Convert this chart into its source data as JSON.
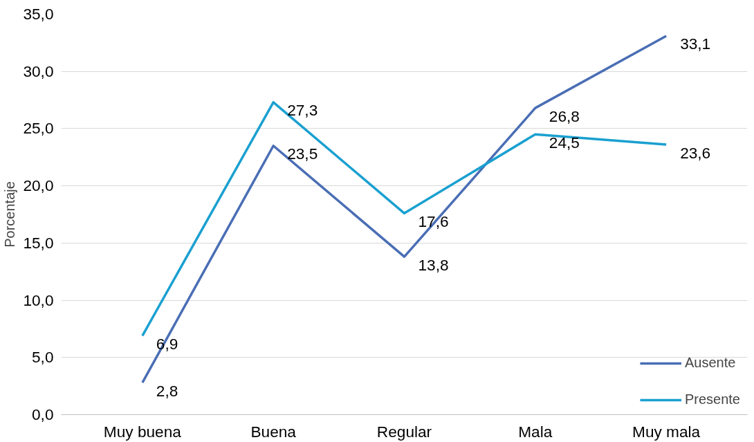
{
  "chart_data": {
    "type": "line",
    "ylabel": "Porcentaje",
    "categories": [
      "Muy buena",
      "Buena",
      "Regular",
      "Mala",
      "Muy mala"
    ],
    "series": [
      {
        "name": "Ausente",
        "color": "#4a6eb5",
        "values": [
          2.8,
          23.5,
          13.8,
          26.8,
          33.1
        ],
        "value_labels": [
          "2,8",
          "23,5",
          "13,8",
          "26,8",
          "33,1"
        ]
      },
      {
        "name": "Presente",
        "color": "#1aa0d0",
        "values": [
          6.9,
          27.3,
          17.6,
          24.5,
          23.6
        ],
        "value_labels": [
          "6,9",
          "27,3",
          "17,6",
          "24,5",
          "23,6"
        ]
      }
    ],
    "ylim": [
      0,
      35
    ],
    "yticks": [
      {
        "value": 0,
        "label": "0,0"
      },
      {
        "value": 5,
        "label": "5,0"
      },
      {
        "value": 10,
        "label": "10,0"
      },
      {
        "value": 15,
        "label": "15,0"
      },
      {
        "value": 20,
        "label": "20,0"
      },
      {
        "value": 25,
        "label": "25,0"
      },
      {
        "value": 30,
        "label": "30,0"
      },
      {
        "value": 35,
        "label": "35,0"
      }
    ],
    "grid": "y",
    "legend": "bottom right",
    "marker": "none",
    "line_style": "solid"
  }
}
